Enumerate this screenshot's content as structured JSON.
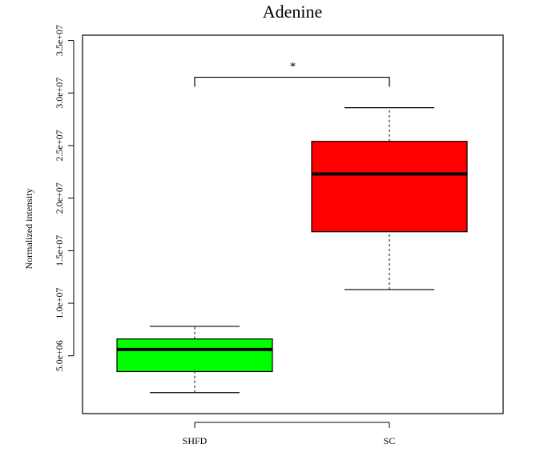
{
  "chart_data": {
    "type": "box",
    "title": "Adenine",
    "xlabel": "",
    "ylabel": "Normalized intensity",
    "categories": [
      "SHFD",
      "SC"
    ],
    "ylim": [
      -500000,
      35500000
    ],
    "yticks": [
      5000000,
      10000000,
      15000000,
      20000000,
      25000000,
      30000000,
      35000000
    ],
    "ytick_labels": [
      "5.0e+06",
      "1.0e+07",
      "1.5e+07",
      "2.0e+07",
      "2.5e+07",
      "3.0e+07",
      "3.5e+07"
    ],
    "boxes": [
      {
        "category": "SHFD",
        "whisker_low": 1500000,
        "q1": 3500000,
        "median": 5600000,
        "q3": 6600000,
        "whisker_high": 7800000,
        "color": "#00ff00"
      },
      {
        "category": "SC",
        "whisker_low": 11300000,
        "q1": 16800000,
        "median": 22300000,
        "q3": 25400000,
        "whisker_high": 28600000,
        "color": "#ff0000"
      }
    ],
    "annotations": [
      {
        "text": "*",
        "between": [
          "SHFD",
          "SC"
        ],
        "bracket_y": 31500000
      }
    ],
    "grid": false,
    "legend": "none"
  }
}
